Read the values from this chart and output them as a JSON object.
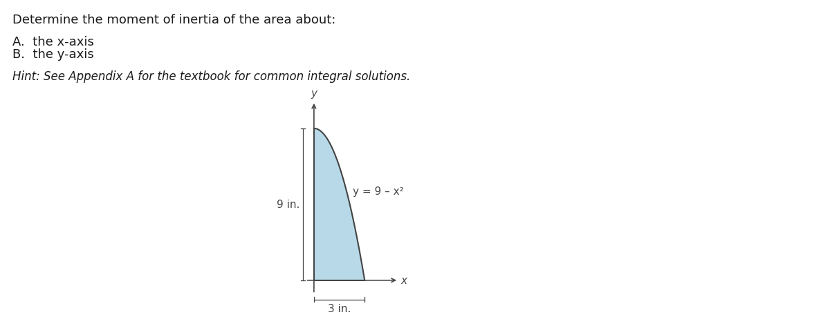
{
  "title_line1": "Determine the moment of inertia of the area about:",
  "item_A": "A.  the x-axis",
  "item_B": "B.  the y-axis",
  "hint": "Hint: See Appendix A for the textbook for common integral solutions.",
  "x_max": 3,
  "y_max": 9,
  "fill_color": "#b8d9e8",
  "fill_alpha": 1.0,
  "curve_color": "#444444",
  "axis_color": "#444444",
  "dim_color": "#444444",
  "label_9in": "9 in.",
  "label_3in": "3 in.",
  "curve_label": "y = 9 – x²",
  "text_color": "#1a1a1a",
  "hint_color": "#1a1a1a",
  "font_size_main": 13,
  "font_size_hint": 12,
  "font_size_axis": 11,
  "font_size_dim": 11,
  "font_size_curve_label": 11
}
